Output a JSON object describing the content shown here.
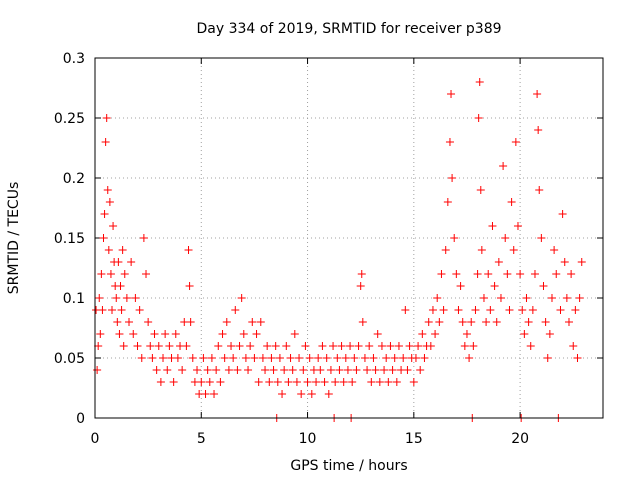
{
  "chart_data": {
    "type": "scatter",
    "title": "Day 334 of 2019, SRMTID for receiver p389",
    "xlabel": "GPS time / hours",
    "ylabel": "SRMTID / TECUs",
    "xlim": [
      0,
      23.9
    ],
    "ylim": [
      0,
      0.3
    ],
    "grid": true,
    "marker": "+",
    "marker_color": "#ff0000",
    "xticks": [
      0,
      5,
      10,
      15,
      20
    ],
    "xtick_labels": [
      "0",
      "5",
      "10",
      "15",
      "20"
    ],
    "yticks": [
      0,
      0.05,
      0.1,
      0.15,
      0.2,
      0.25,
      0.3
    ],
    "ytick_labels": [
      "0",
      "0.05",
      "0.1",
      "0.15",
      "0.2",
      "0.25",
      "0.3"
    ],
    "series": [
      {
        "name": "SRMTID",
        "points": [
          [
            0.05,
            0.09
          ],
          [
            0.1,
            0.04
          ],
          [
            0.15,
            0.06
          ],
          [
            0.2,
            0.1
          ],
          [
            0.25,
            0.07
          ],
          [
            0.3,
            0.12
          ],
          [
            0.35,
            0.09
          ],
          [
            0.4,
            0.15
          ],
          [
            0.45,
            0.17
          ],
          [
            0.5,
            0.23
          ],
          [
            0.55,
            0.25
          ],
          [
            0.6,
            0.19
          ],
          [
            0.65,
            0.14
          ],
          [
            0.7,
            0.18
          ],
          [
            0.75,
            0.12
          ],
          [
            0.8,
            0.09
          ],
          [
            0.85,
            0.16
          ],
          [
            0.9,
            0.13
          ],
          [
            0.95,
            0.11
          ],
          [
            1.0,
            0.1
          ],
          [
            1.05,
            0.08
          ],
          [
            1.1,
            0.13
          ],
          [
            1.15,
            0.07
          ],
          [
            1.2,
            0.11
          ],
          [
            1.25,
            0.09
          ],
          [
            1.3,
            0.14
          ],
          [
            1.35,
            0.06
          ],
          [
            1.4,
            0.12
          ],
          [
            1.5,
            0.1
          ],
          [
            1.6,
            0.08
          ],
          [
            1.7,
            0.13
          ],
          [
            1.8,
            0.07
          ],
          [
            1.9,
            0.1
          ],
          [
            2.0,
            0.06
          ],
          [
            2.1,
            0.09
          ],
          [
            2.2,
            0.05
          ],
          [
            2.3,
            0.15
          ],
          [
            2.4,
            0.12
          ],
          [
            2.5,
            0.08
          ],
          [
            2.6,
            0.06
          ],
          [
            2.7,
            0.05
          ],
          [
            2.8,
            0.07
          ],
          [
            2.9,
            0.04
          ],
          [
            3.0,
            0.06
          ],
          [
            3.1,
            0.03
          ],
          [
            3.2,
            0.05
          ],
          [
            3.3,
            0.07
          ],
          [
            3.4,
            0.04
          ],
          [
            3.5,
            0.06
          ],
          [
            3.6,
            0.05
          ],
          [
            3.7,
            0.03
          ],
          [
            3.8,
            0.07
          ],
          [
            3.9,
            0.05
          ],
          [
            4.0,
            0.06
          ],
          [
            4.1,
            0.04
          ],
          [
            4.2,
            0.08
          ],
          [
            4.3,
            0.06
          ],
          [
            4.4,
            0.14
          ],
          [
            4.45,
            0.11
          ],
          [
            4.5,
            0.08
          ],
          [
            4.6,
            0.05
          ],
          [
            4.7,
            0.03
          ],
          [
            4.8,
            0.04
          ],
          [
            4.9,
            0.02
          ],
          [
            5.0,
            0.03
          ],
          [
            5.1,
            0.05
          ],
          [
            5.2,
            0.02
          ],
          [
            5.3,
            0.04
          ],
          [
            5.4,
            0.03
          ],
          [
            5.5,
            0.05
          ],
          [
            5.6,
            0.02
          ],
          [
            5.7,
            0.04
          ],
          [
            5.8,
            0.06
          ],
          [
            5.9,
            0.03
          ],
          [
            6.0,
            0.07
          ],
          [
            6.1,
            0.05
          ],
          [
            6.2,
            0.08
          ],
          [
            6.3,
            0.04
          ],
          [
            6.4,
            0.06
          ],
          [
            6.5,
            0.05
          ],
          [
            6.6,
            0.09
          ],
          [
            6.7,
            0.04
          ],
          [
            6.8,
            0.06
          ],
          [
            6.9,
            0.1
          ],
          [
            7.0,
            0.07
          ],
          [
            7.1,
            0.05
          ],
          [
            7.2,
            0.04
          ],
          [
            7.3,
            0.06
          ],
          [
            7.4,
            0.08
          ],
          [
            7.5,
            0.05
          ],
          [
            7.6,
            0.07
          ],
          [
            7.7,
            0.03
          ],
          [
            7.8,
            0.08
          ],
          [
            7.9,
            0.05
          ],
          [
            8.0,
            0.04
          ],
          [
            8.1,
            0.06
          ],
          [
            8.2,
            0.03
          ],
          [
            8.3,
            0.05
          ],
          [
            8.4,
            0.04
          ],
          [
            8.5,
            0.06
          ],
          [
            8.55,
            0.0
          ],
          [
            8.6,
            0.03
          ],
          [
            8.7,
            0.05
          ],
          [
            8.8,
            0.02
          ],
          [
            8.9,
            0.04
          ],
          [
            9.0,
            0.06
          ],
          [
            9.1,
            0.03
          ],
          [
            9.2,
            0.05
          ],
          [
            9.3,
            0.04
          ],
          [
            9.4,
            0.07
          ],
          [
            9.5,
            0.03
          ],
          [
            9.6,
            0.05
          ],
          [
            9.7,
            0.02
          ],
          [
            9.8,
            0.04
          ],
          [
            9.9,
            0.06
          ],
          [
            10.0,
            0.03
          ],
          [
            10.1,
            0.05
          ],
          [
            10.2,
            0.02
          ],
          [
            10.3,
            0.04
          ],
          [
            10.4,
            0.03
          ],
          [
            10.5,
            0.05
          ],
          [
            10.6,
            0.04
          ],
          [
            10.7,
            0.06
          ],
          [
            10.8,
            0.03
          ],
          [
            10.9,
            0.05
          ],
          [
            11.0,
            0.02
          ],
          [
            11.1,
            0.04
          ],
          [
            11.2,
            0.06
          ],
          [
            11.25,
            0.0
          ],
          [
            11.3,
            0.03
          ],
          [
            11.4,
            0.05
          ],
          [
            11.5,
            0.04
          ],
          [
            11.6,
            0.06
          ],
          [
            11.7,
            0.03
          ],
          [
            11.8,
            0.05
          ],
          [
            11.9,
            0.04
          ],
          [
            12.0,
            0.06
          ],
          [
            12.05,
            0.0
          ],
          [
            12.1,
            0.03
          ],
          [
            12.2,
            0.05
          ],
          [
            12.3,
            0.04
          ],
          [
            12.4,
            0.06
          ],
          [
            12.5,
            0.11
          ],
          [
            12.55,
            0.12
          ],
          [
            12.6,
            0.08
          ],
          [
            12.7,
            0.05
          ],
          [
            12.8,
            0.04
          ],
          [
            12.9,
            0.06
          ],
          [
            13.0,
            0.03
          ],
          [
            13.1,
            0.05
          ],
          [
            13.2,
            0.04
          ],
          [
            13.3,
            0.07
          ],
          [
            13.4,
            0.03
          ],
          [
            13.5,
            0.06
          ],
          [
            13.6,
            0.04
          ],
          [
            13.7,
            0.05
          ],
          [
            13.8,
            0.03
          ],
          [
            13.9,
            0.06
          ],
          [
            14.0,
            0.04
          ],
          [
            14.1,
            0.05
          ],
          [
            14.2,
            0.03
          ],
          [
            14.3,
            0.06
          ],
          [
            14.4,
            0.04
          ],
          [
            14.5,
            0.05
          ],
          [
            14.6,
            0.09
          ],
          [
            14.7,
            0.04
          ],
          [
            14.8,
            0.06
          ],
          [
            14.9,
            0.05
          ],
          [
            15.0,
            0.03
          ],
          [
            15.1,
            0.05
          ],
          [
            15.2,
            0.06
          ],
          [
            15.3,
            0.04
          ],
          [
            15.4,
            0.07
          ],
          [
            15.5,
            0.05
          ],
          [
            15.6,
            0.06
          ],
          [
            15.7,
            0.08
          ],
          [
            15.8,
            0.06
          ],
          [
            15.9,
            0.09
          ],
          [
            16.0,
            0.07
          ],
          [
            16.1,
            0.1
          ],
          [
            16.2,
            0.08
          ],
          [
            16.3,
            0.12
          ],
          [
            16.4,
            0.09
          ],
          [
            16.5,
            0.14
          ],
          [
            16.6,
            0.18
          ],
          [
            16.7,
            0.23
          ],
          [
            16.75,
            0.27
          ],
          [
            16.8,
            0.2
          ],
          [
            16.9,
            0.15
          ],
          [
            17.0,
            0.12
          ],
          [
            17.1,
            0.09
          ],
          [
            17.2,
            0.11
          ],
          [
            17.3,
            0.08
          ],
          [
            17.4,
            0.06
          ],
          [
            17.5,
            0.07
          ],
          [
            17.6,
            0.05
          ],
          [
            17.7,
            0.08
          ],
          [
            17.75,
            0.0
          ],
          [
            17.8,
            0.06
          ],
          [
            17.9,
            0.09
          ],
          [
            18.0,
            0.12
          ],
          [
            18.05,
            0.25
          ],
          [
            18.1,
            0.28
          ],
          [
            18.15,
            0.19
          ],
          [
            18.2,
            0.14
          ],
          [
            18.3,
            0.1
          ],
          [
            18.4,
            0.08
          ],
          [
            18.5,
            0.12
          ],
          [
            18.6,
            0.09
          ],
          [
            18.7,
            0.16
          ],
          [
            18.8,
            0.11
          ],
          [
            18.9,
            0.08
          ],
          [
            19.0,
            0.13
          ],
          [
            19.1,
            0.1
          ],
          [
            19.2,
            0.21
          ],
          [
            19.3,
            0.15
          ],
          [
            19.4,
            0.12
          ],
          [
            19.5,
            0.09
          ],
          [
            19.6,
            0.18
          ],
          [
            19.7,
            0.14
          ],
          [
            19.8,
            0.23
          ],
          [
            19.9,
            0.16
          ],
          [
            20.0,
            0.12
          ],
          [
            20.05,
            0.0
          ],
          [
            20.1,
            0.09
          ],
          [
            20.2,
            0.07
          ],
          [
            20.3,
            0.1
          ],
          [
            20.4,
            0.08
          ],
          [
            20.5,
            0.06
          ],
          [
            20.6,
            0.09
          ],
          [
            20.7,
            0.12
          ],
          [
            20.8,
            0.27
          ],
          [
            20.85,
            0.24
          ],
          [
            20.9,
            0.19
          ],
          [
            21.0,
            0.15
          ],
          [
            21.1,
            0.11
          ],
          [
            21.2,
            0.08
          ],
          [
            21.3,
            0.05
          ],
          [
            21.4,
            0.07
          ],
          [
            21.5,
            0.1
          ],
          [
            21.6,
            0.14
          ],
          [
            21.7,
            0.12
          ],
          [
            21.8,
            0.0
          ],
          [
            21.9,
            0.09
          ],
          [
            22.0,
            0.17
          ],
          [
            22.1,
            0.13
          ],
          [
            22.2,
            0.1
          ],
          [
            22.3,
            0.08
          ],
          [
            22.4,
            0.12
          ],
          [
            22.5,
            0.06
          ],
          [
            22.6,
            0.09
          ],
          [
            22.7,
            0.05
          ],
          [
            22.8,
            0.1
          ],
          [
            22.9,
            0.13
          ]
        ]
      }
    ]
  }
}
